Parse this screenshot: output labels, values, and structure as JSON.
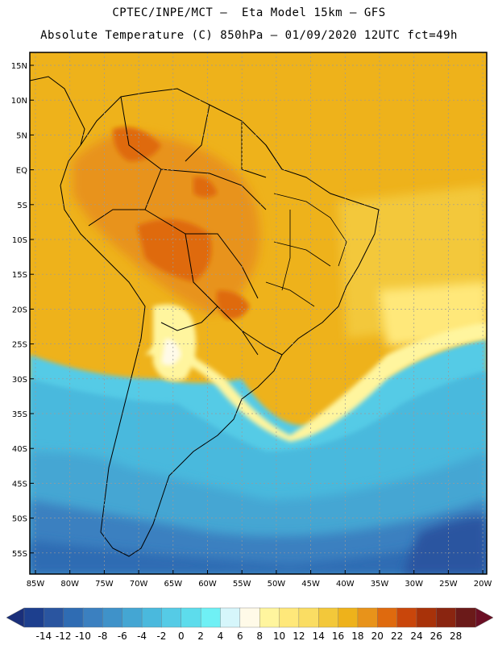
{
  "header": {
    "line1": "CPTEC/INPE/MCT –  Eta Model 15km – GFS",
    "line2": "Absolute Temperature (C) 850hPa – 01/09/2020 12UTC fct=49h"
  },
  "axes": {
    "lat_labels": [
      "15N",
      "10N",
      "5N",
      "EQ",
      "5S",
      "10S",
      "15S",
      "20S",
      "25S",
      "30S",
      "35S",
      "40S",
      "45S",
      "50S",
      "55S"
    ],
    "lon_labels": [
      "85W",
      "80W",
      "75W",
      "70W",
      "65W",
      "60W",
      "55W",
      "50W",
      "45W",
      "40W",
      "35W",
      "30W",
      "25W",
      "20W"
    ]
  },
  "colorbar": {
    "ticks": [
      "-14",
      "-12",
      "-10",
      "-8",
      "-6",
      "-4",
      "-2",
      "0",
      "2",
      "4",
      "6",
      "8",
      "10",
      "12",
      "14",
      "16",
      "18",
      "20",
      "22",
      "24",
      "26",
      "28"
    ],
    "colors": [
      "#1d3f8e",
      "#2a55a0",
      "#2f6cb3",
      "#3b80c0",
      "#3f92c9",
      "#44a6d3",
      "#4ab9dd",
      "#55cbe6",
      "#5ddcec",
      "#6ff0f5",
      "#d6f6fb",
      "#fffae8",
      "#fff59e",
      "#ffe87a",
      "#fadd63",
      "#f3c83a",
      "#eeb21b",
      "#e8931a",
      "#df6a0e",
      "#c9460b",
      "#a83209",
      "#8a2510",
      "#6b1a19"
    ],
    "min_arrow_color": "#1a2f7a",
    "max_arrow_color": "#6b0f24"
  }
}
